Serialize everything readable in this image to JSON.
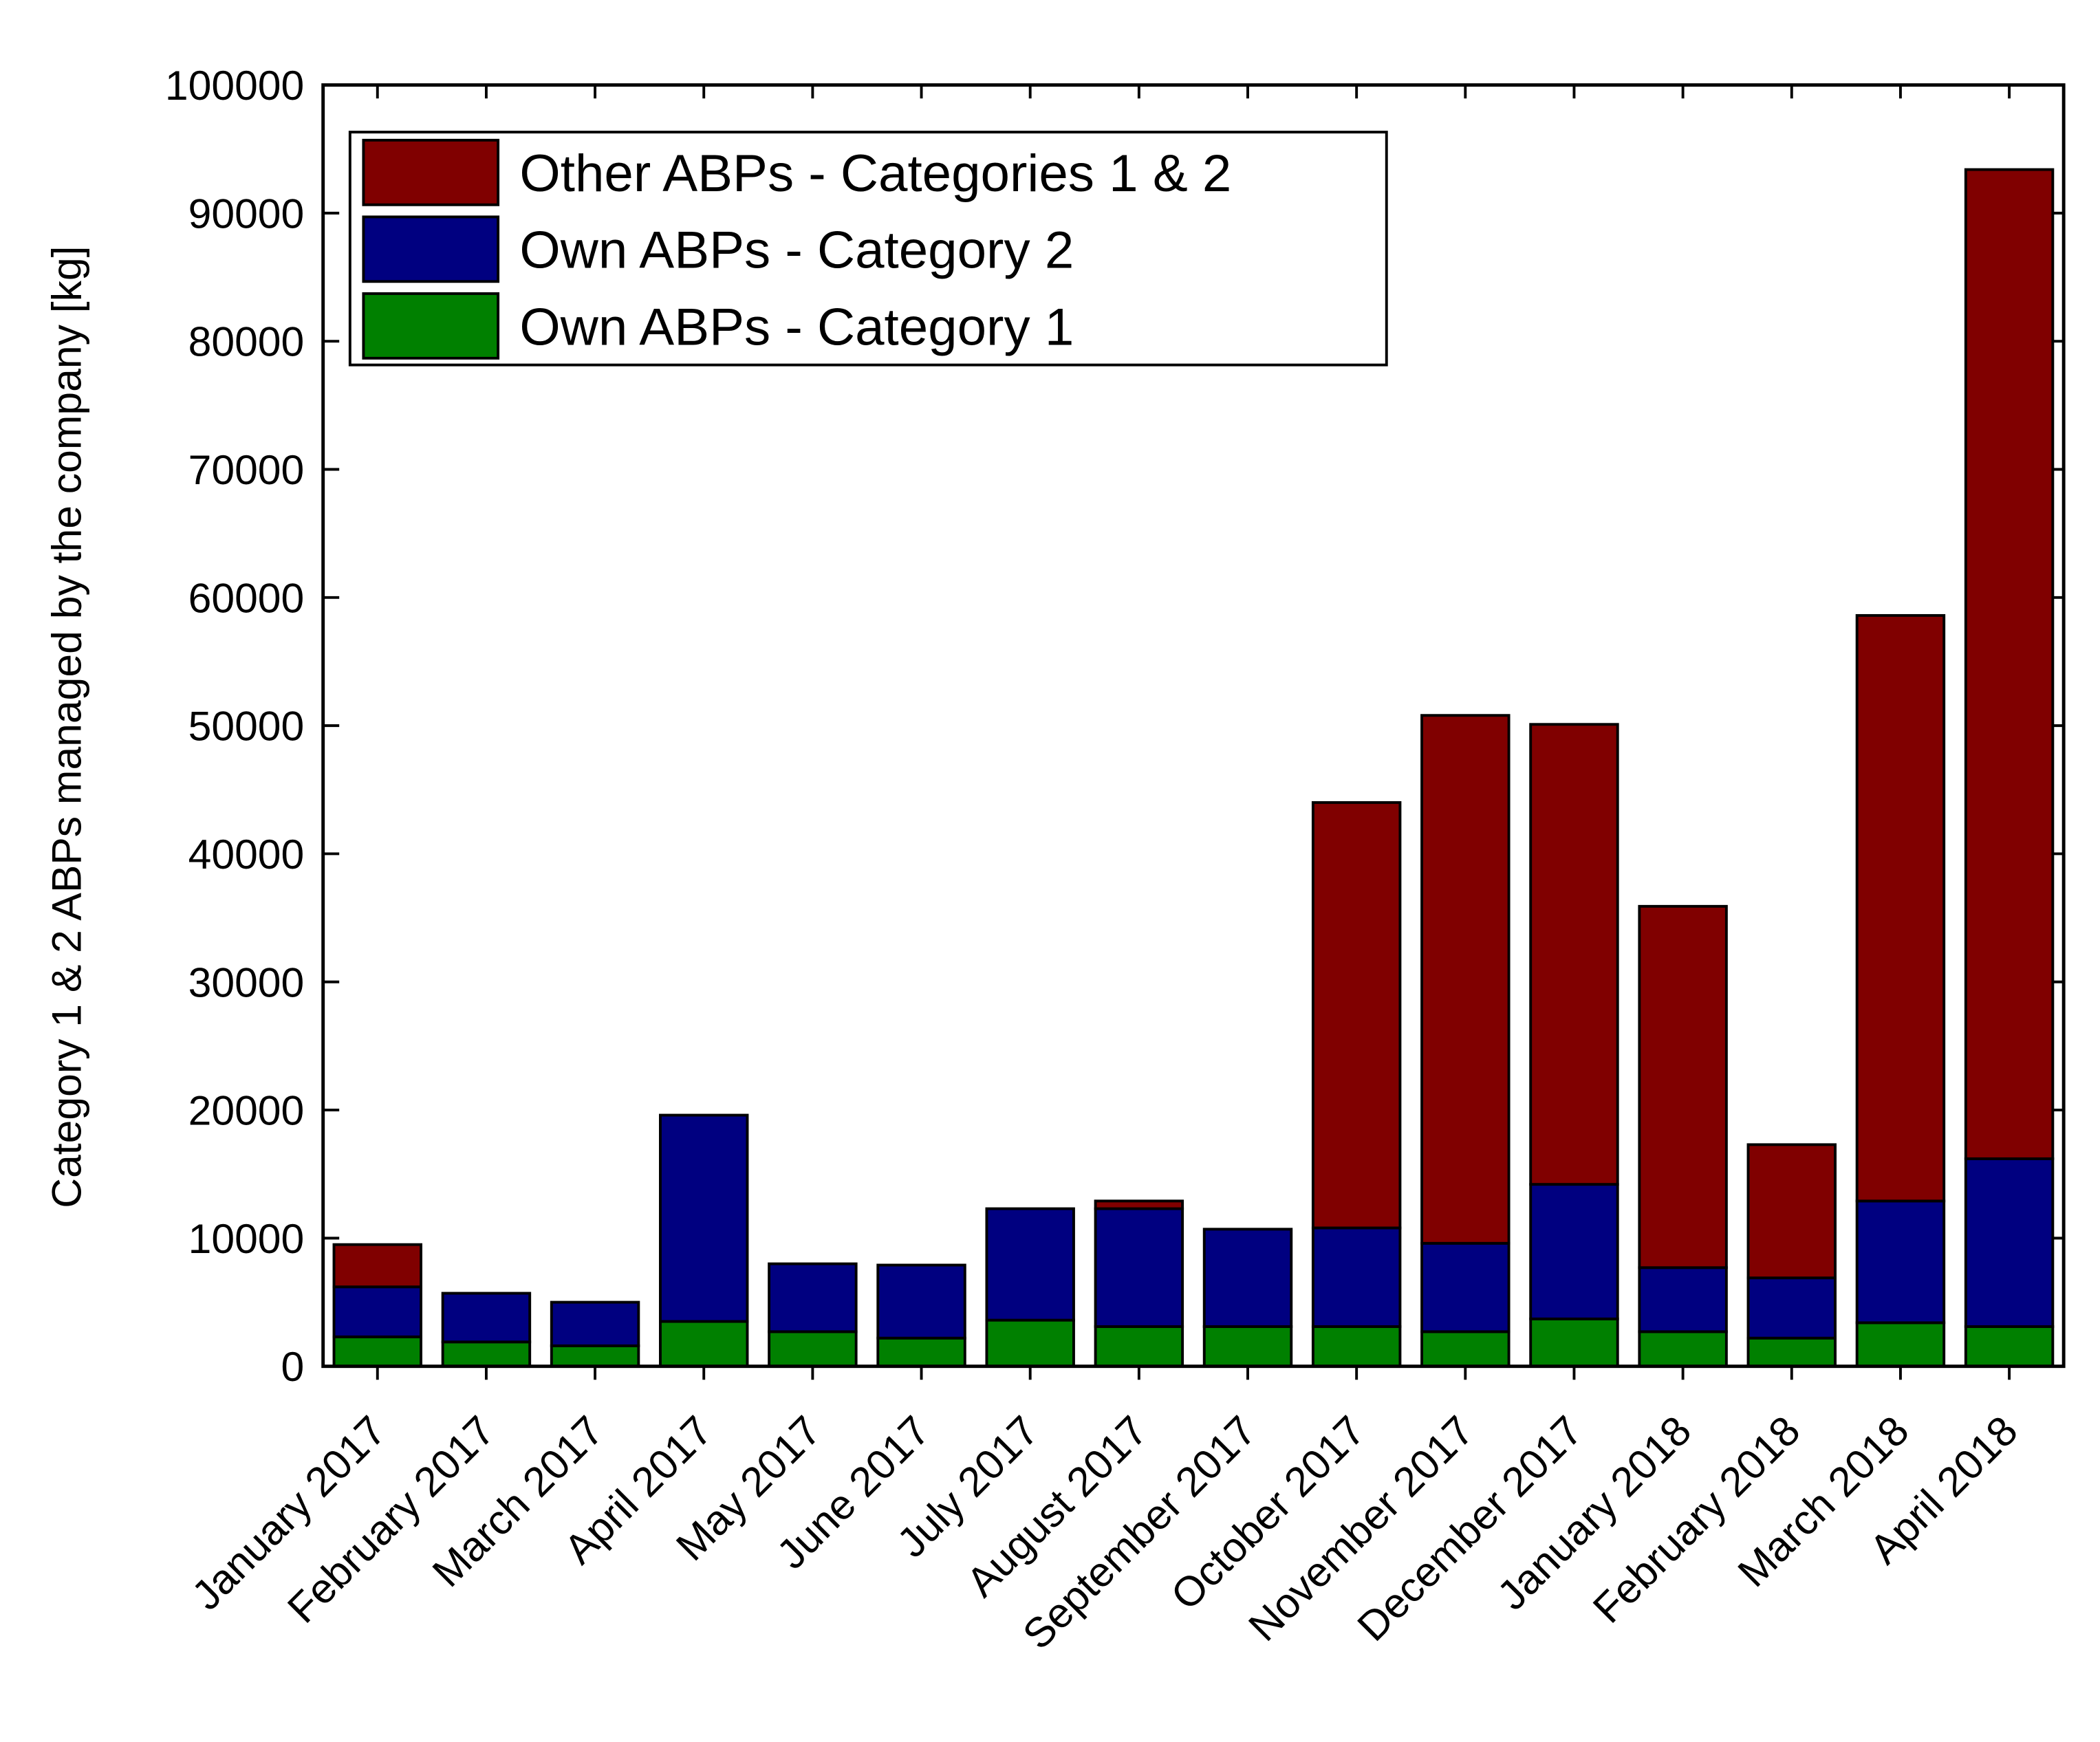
{
  "chart_data": {
    "type": "stacked-bar",
    "y_label": "Category 1 & 2 ABPs managed by the company [kg]",
    "categories": [
      "January 2017",
      "February 2017",
      "March 2017",
      "April 2017",
      "May 2017",
      "June 2017",
      "July 2017",
      "August 2017",
      "September 2017",
      "October 2017",
      "November 2017",
      "December 2017",
      "January 2018",
      "February 2018",
      "March 2018",
      "April 2018"
    ],
    "series": [
      {
        "name": "Own ABPs - Category 1",
        "color": "#008000",
        "values": [
          2300,
          1900,
          1600,
          3500,
          2700,
          2200,
          3600,
          3100,
          3100,
          3100,
          2700,
          3700,
          2700,
          2200,
          3400,
          3100
        ]
      },
      {
        "name": "Own ABPs - Category 2",
        "color": "#000080",
        "values": [
          3900,
          3800,
          3400,
          16100,
          5300,
          5700,
          8700,
          9200,
          7600,
          7700,
          6900,
          10500,
          5000,
          4700,
          9500,
          13100
        ]
      },
      {
        "name": "Other ABPs - Categories 1 & 2",
        "color": "#800000",
        "values": [
          3300,
          0,
          0,
          0,
          0,
          0,
          0,
          600,
          0,
          33200,
          41200,
          35900,
          28200,
          10400,
          45700,
          77200
        ]
      }
    ],
    "ylim": [
      0,
      100000
    ],
    "yticks": [
      0,
      10000,
      20000,
      30000,
      40000,
      50000,
      60000,
      70000,
      80000,
      90000,
      100000
    ],
    "legend": "upper left",
    "grid": false
  }
}
